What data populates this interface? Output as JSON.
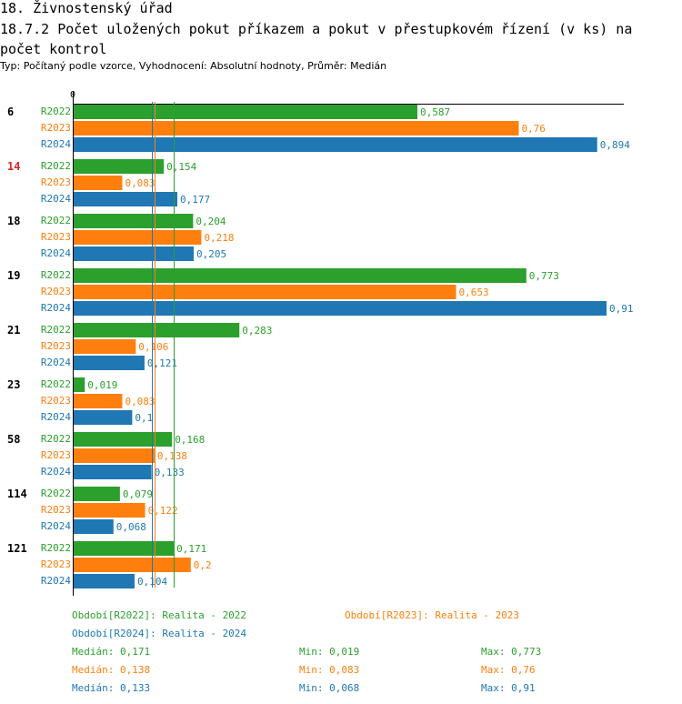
{
  "header": {
    "title": "18. Živnostenský úřad",
    "subtitle": "18.7.2 Počet uložených pokut příkazem a pokut v přestupkovém řízení (v ks) na počet kontrol",
    "info": "Typ: Počítaný podle vzorce, Vyhodnocení: Absolutní hodnoty, Průměr: Medián"
  },
  "colors": {
    "R2022": "#2ca02c",
    "R2023": "#ff7f0e",
    "R2024": "#1f77b4",
    "highlight": "#d62728"
  },
  "chart_data": {
    "type": "bar",
    "orientation": "horizontal",
    "xlim": [
      0,
      0.91
    ],
    "x_tick_label": "0",
    "series_names": [
      "R2022",
      "R2023",
      "R2024"
    ],
    "groups": [
      {
        "label": "6",
        "highlight": false,
        "values": [
          0.587,
          0.76,
          0.894
        ],
        "labels": [
          "0,587",
          "0,76",
          "0,894"
        ]
      },
      {
        "label": "14",
        "highlight": true,
        "values": [
          0.154,
          0.083,
          0.177
        ],
        "labels": [
          "0,154",
          "0,083",
          "0,177"
        ]
      },
      {
        "label": "18",
        "highlight": false,
        "values": [
          0.204,
          0.218,
          0.205
        ],
        "labels": [
          "0,204",
          "0,218",
          "0,205"
        ]
      },
      {
        "label": "19",
        "highlight": false,
        "values": [
          0.773,
          0.653,
          0.91
        ],
        "labels": [
          "0,773",
          "0,653",
          "0,91"
        ]
      },
      {
        "label": "21",
        "highlight": false,
        "values": [
          0.283,
          0.106,
          0.121
        ],
        "labels": [
          "0,283",
          "0,106",
          "0,121"
        ]
      },
      {
        "label": "23",
        "highlight": false,
        "values": [
          0.019,
          0.083,
          0.1
        ],
        "labels": [
          "0,019",
          "0,083",
          "0,1"
        ]
      },
      {
        "label": "58",
        "highlight": false,
        "values": [
          0.168,
          0.138,
          0.133
        ],
        "labels": [
          "0,168",
          "0,138",
          "0,133"
        ]
      },
      {
        "label": "114",
        "highlight": false,
        "values": [
          0.079,
          0.122,
          0.068
        ],
        "labels": [
          "0,079",
          "0,122",
          "0,068"
        ]
      },
      {
        "label": "121",
        "highlight": false,
        "values": [
          0.171,
          0.2,
          0.104
        ],
        "labels": [
          "0,171",
          "0,2",
          "0,104"
        ]
      }
    ],
    "median_lines": [
      0.171,
      0.138,
      0.133
    ]
  },
  "legend": {
    "periods": [
      "Období[R2022]: Realita - 2022",
      "Období[R2023]: Realita - 2023",
      "Období[R2024]: Realita - 2024"
    ],
    "stats": [
      {
        "median": "Medián: 0,171",
        "min": "Min: 0,019",
        "max": "Max: 0,773"
      },
      {
        "median": "Medián: 0,138",
        "min": "Min: 0,083",
        "max": "Max: 0,76"
      },
      {
        "median": "Medián: 0,133",
        "min": "Min: 0,068",
        "max": "Max: 0,91"
      }
    ]
  }
}
